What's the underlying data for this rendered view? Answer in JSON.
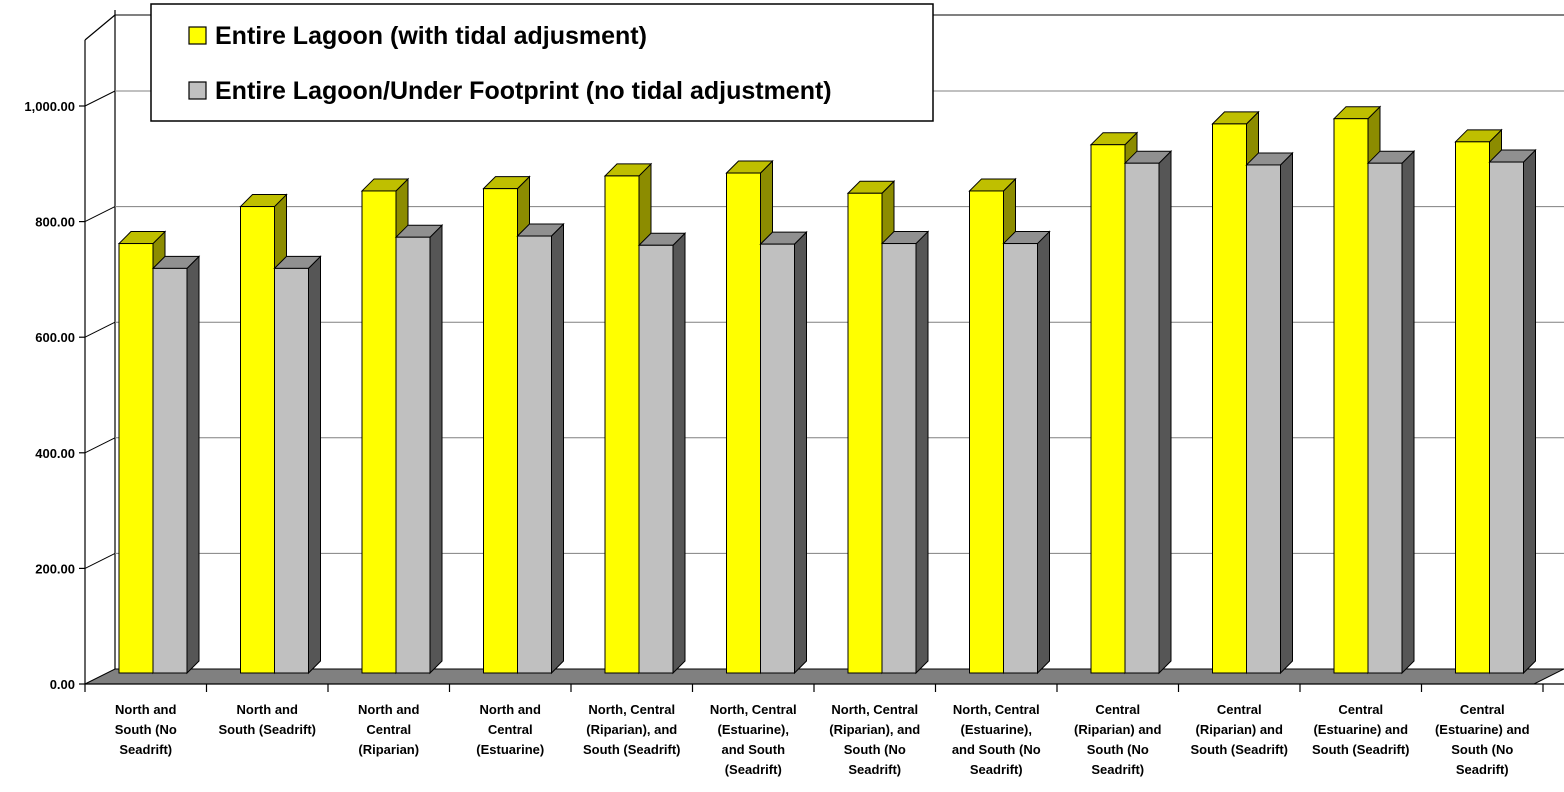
{
  "chart_data": {
    "type": "bar",
    "title": "",
    "xlabel": "",
    "ylabel": "",
    "ylim": [
      0,
      1000
    ],
    "grid": true,
    "legend_position": "top",
    "y_ticks": [
      "0.00",
      "200.00",
      "400.00",
      "600.00",
      "800.00",
      "1,000.00"
    ],
    "categories": [
      [
        "North and",
        "South (No",
        "Seadrift)"
      ],
      [
        "North and",
        "South (Seadrift)"
      ],
      [
        "North and",
        "Central",
        "(Riparian)"
      ],
      [
        "North and",
        "Central",
        "(Estuarine)"
      ],
      [
        "North, Central",
        "(Riparian), and",
        "South (Seadrift)"
      ],
      [
        "North, Central",
        "(Estuarine),",
        "and South",
        "(Seadrift)"
      ],
      [
        "North, Central",
        "(Riparian), and",
        "South (No",
        "Seadrift)"
      ],
      [
        "North, Central",
        "(Estuarine),",
        "and South (No",
        "Seadrift)"
      ],
      [
        "Central",
        "(Riparian) and",
        "South (No",
        "Seadrift)"
      ],
      [
        "Central",
        "(Riparian) and",
        "South (Seadrift)"
      ],
      [
        "Central",
        "(Estuarine) and",
        "South (Seadrift)"
      ],
      [
        "Central",
        "(Estuarine) and",
        "South (No",
        "Seadrift)"
      ]
    ],
    "series": [
      {
        "name": "Entire Lagoon (with tidal adjusment)",
        "color": "#ffff00",
        "values": [
          743,
          807,
          834,
          838,
          860,
          865,
          830,
          834,
          914,
          950,
          959,
          919
        ]
      },
      {
        "name": "Entire Lagoon/Under Footprint (no tidal adjustment)",
        "color": "#c0c0c0",
        "values": [
          700,
          700,
          754,
          756,
          740,
          742,
          743,
          743,
          882,
          879,
          882,
          884
        ]
      }
    ]
  }
}
